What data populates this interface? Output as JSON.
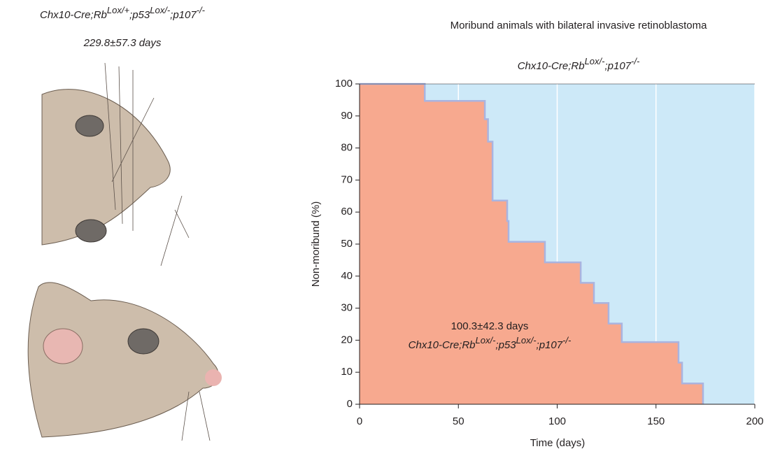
{
  "illustration": {
    "genotype": [
      "Chx10-Cre;Rb",
      "Lox/+",
      ";p53",
      "Lox/-",
      ";p107",
      "-/-"
    ],
    "survival": "229.8±57.3 days"
  },
  "chart_data": {
    "type": "line",
    "step": "post",
    "title": "Moribund animals with bilateral invasive retinoblastoma",
    "subtitle": [
      "Chx10-Cre;Rb",
      "Lox/-",
      ";p107",
      "-/-"
    ],
    "annotation": "100.3±42.3 days",
    "annotation_genotype": [
      "Chx10-Cre;Rb",
      "Lox/-",
      ";p53",
      "Lox/-",
      ";p107",
      "-/-"
    ],
    "x_label": "Time (days)",
    "y_label": "Non-moribund (%)",
    "x": [
      0,
      33,
      63.4,
      65,
      67.3,
      74.7,
      75.4,
      93.8,
      111.9,
      118.6,
      126,
      132.7,
      161.4,
      163.2,
      173.8
    ],
    "values": [
      100,
      94.7,
      89,
      82,
      63.6,
      57.2,
      50.7,
      44.3,
      37.9,
      31.6,
      25.2,
      19.4,
      13,
      6.5,
      0
    ],
    "color": "#f7a98f",
    "line_color": "#a9b4e0",
    "background": "#cde9f8",
    "xlim": [
      0,
      200
    ],
    "ylim": [
      0,
      100
    ],
    "xticks": [
      0,
      50,
      100,
      150,
      200
    ],
    "yticks": [
      0,
      10,
      20,
      30,
      40,
      50,
      60,
      70,
      80,
      90,
      100
    ],
    "grid": "x"
  }
}
